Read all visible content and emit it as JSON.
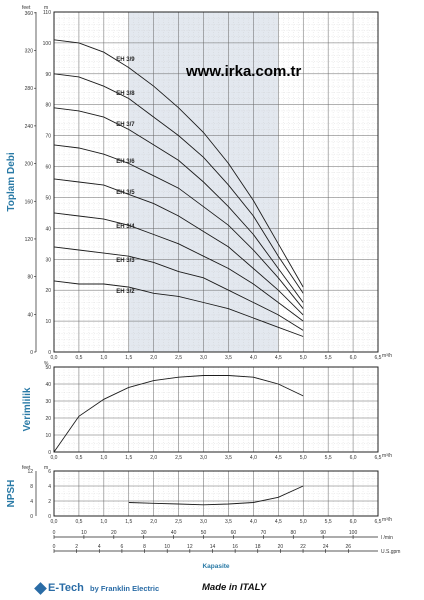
{
  "watermark": "www.irka.com.tr",
  "chart_data": [
    {
      "type": "line",
      "id": "head",
      "ylabel": "Toplam Debi",
      "y_unit_left": "feet",
      "y_unit_right": "m",
      "yticks_feet": [
        "0",
        "40",
        "80",
        "120",
        "160",
        "200",
        "240",
        "280",
        "320",
        "360"
      ],
      "yticks_m": [
        "0",
        "10",
        "20",
        "30",
        "40",
        "50",
        "60",
        "70",
        "80",
        "90",
        "100",
        "110"
      ],
      "xticks": [
        "0,0",
        "0,5",
        "1,0",
        "1,5",
        "2,0",
        "2,5",
        "3,0",
        "3,5",
        "4,0",
        "4,5",
        "5,0",
        "5,5",
        "6,0",
        "6,5"
      ],
      "x_unit": "m³/h",
      "xlim": [
        0,
        6.5
      ],
      "ylim": [
        0,
        110
      ],
      "grid": true,
      "shaded_range": [
        1.5,
        4.5
      ],
      "series": [
        {
          "name": "EH 3/9",
          "x": [
            0,
            0.5,
            1,
            1.5,
            2,
            2.5,
            3,
            3.5,
            4,
            4.5,
            5
          ],
          "values": [
            101,
            100,
            97,
            92,
            86,
            79,
            71,
            61,
            49,
            35,
            21
          ]
        },
        {
          "name": "EH 3/8",
          "x": [
            0,
            0.5,
            1,
            1.5,
            2,
            2.5,
            3,
            3.5,
            4,
            4.5,
            5
          ],
          "values": [
            90,
            89,
            86,
            82,
            76,
            70,
            63,
            54,
            44,
            31,
            19
          ]
        },
        {
          "name": "EH 3/7",
          "x": [
            0,
            0.5,
            1,
            1.5,
            2,
            2.5,
            3,
            3.5,
            4,
            4.5,
            5
          ],
          "values": [
            79,
            78,
            76,
            72,
            67,
            62,
            55,
            47,
            38,
            27,
            16
          ]
        },
        {
          "name": "EH 3/6",
          "x": [
            0,
            0.5,
            1,
            1.5,
            2,
            2.5,
            3,
            3.5,
            4,
            4.5,
            5
          ],
          "values": [
            67,
            66,
            64,
            61,
            57,
            53,
            47,
            41,
            33,
            24,
            14
          ]
        },
        {
          "name": "EH 3/5",
          "x": [
            0,
            0.5,
            1,
            1.5,
            2,
            2.5,
            3,
            3.5,
            4,
            4.5,
            5
          ],
          "values": [
            56,
            55,
            54,
            51,
            48,
            44,
            39,
            34,
            27,
            20,
            12
          ]
        },
        {
          "name": "EH 3/4",
          "x": [
            0,
            0.5,
            1,
            1.5,
            2,
            2.5,
            3,
            3.5,
            4,
            4.5,
            5
          ],
          "values": [
            45,
            44,
            43,
            41,
            38,
            35,
            31,
            27,
            22,
            16,
            10
          ]
        },
        {
          "name": "EH 3/3",
          "x": [
            0,
            0.5,
            1,
            1.5,
            2,
            2.5,
            3,
            3.5,
            4,
            4.5,
            5
          ],
          "values": [
            34,
            33,
            32,
            31,
            29,
            26,
            24,
            20,
            16,
            12,
            7
          ]
        },
        {
          "name": "EH 3/2",
          "x": [
            0,
            0.5,
            1,
            1.5,
            2,
            2.5,
            3,
            3.5,
            4,
            4.5,
            5
          ],
          "values": [
            23,
            22,
            22,
            21,
            19,
            18,
            16,
            14,
            11,
            8,
            5
          ]
        }
      ]
    },
    {
      "type": "line",
      "id": "efficiency",
      "ylabel": "Verimlilik",
      "y_unit": "%",
      "yticks": [
        "0",
        "10",
        "20",
        "30",
        "40",
        "50"
      ],
      "xticks": [
        "0,0",
        "0,5",
        "1,0",
        "1,5",
        "2,0",
        "2,5",
        "3,0",
        "3,5",
        "4,0",
        "4,5",
        "5,0",
        "5,5",
        "6,0",
        "6,5"
      ],
      "x_unit": "m³/h",
      "xlim": [
        0,
        6.5
      ],
      "ylim": [
        0,
        50
      ],
      "grid": true,
      "series": [
        {
          "x": [
            0,
            0.5,
            1,
            1.5,
            2,
            2.5,
            3,
            3.5,
            4,
            4.5,
            5
          ],
          "values": [
            0,
            21,
            31,
            38,
            42,
            44,
            45,
            45,
            44,
            40,
            33
          ]
        }
      ]
    },
    {
      "type": "line",
      "id": "npsh",
      "ylabel": "NPSH",
      "y_unit_left": "feet",
      "y_unit_right": "m",
      "yticks_feet": [
        "0",
        "4",
        "8",
        "12"
      ],
      "yticks_m": [
        "0",
        "2",
        "4",
        "6"
      ],
      "xticks": [
        "0,0",
        "0,5",
        "1,0",
        "1,5",
        "2,0",
        "2,5",
        "3,0",
        "3,5",
        "4,0",
        "4,5",
        "5,0",
        "5,5",
        "6,0",
        "6,5"
      ],
      "x_unit": "m³/h",
      "xlim": [
        0,
        6.5
      ],
      "ylim": [
        0,
        6
      ],
      "grid": true,
      "series": [
        {
          "x": [
            1.5,
            2,
            2.5,
            3,
            3.5,
            4,
            4.5,
            5
          ],
          "values": [
            1.8,
            1.7,
            1.6,
            1.5,
            1.6,
            1.8,
            2.5,
            4
          ]
        }
      ],
      "lmin_ticks": [
        "0",
        "10",
        "20",
        "30",
        "40",
        "50",
        "60",
        "70",
        "80",
        "90",
        "100"
      ],
      "lmin_unit": "l /min",
      "usgpm_ticks": [
        "0",
        "2",
        "4",
        "6",
        "8",
        "10",
        "12",
        "14",
        "16",
        "18",
        "20",
        "22",
        "24",
        "26"
      ],
      "usgpm_unit": "U.S.gpm",
      "xlabel": "Kapasite"
    }
  ],
  "footer": {
    "brand": "E-Tech",
    "maker": "by Franklin Electric",
    "made": "Made in ITALY"
  }
}
